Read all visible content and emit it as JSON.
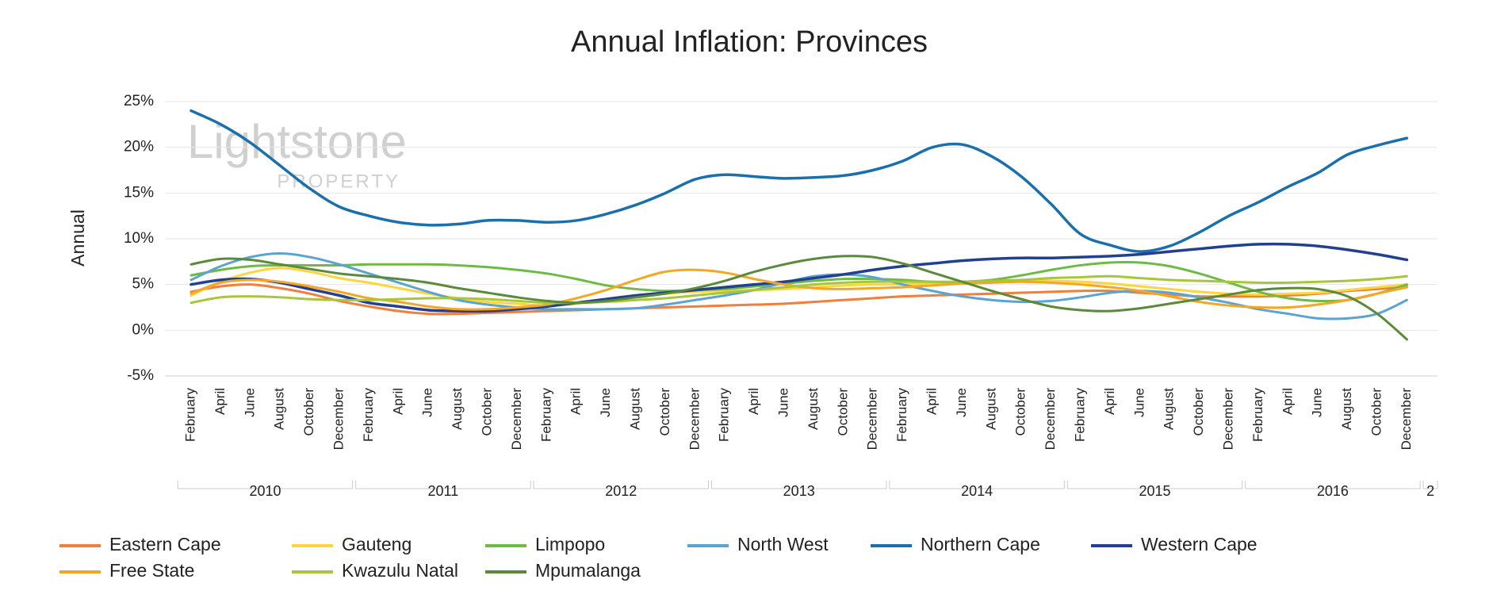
{
  "chart_data": {
    "type": "line",
    "title": "Annual Inflation: Provinces",
    "y_label": "Annual",
    "watermark": [
      "Lightstone",
      "PROPERTY"
    ],
    "categories": [
      "February",
      "April",
      "June",
      "August",
      "October",
      "December",
      "February",
      "April",
      "June",
      "August",
      "October",
      "December",
      "February",
      "April",
      "June",
      "August",
      "October",
      "December",
      "February",
      "April",
      "June",
      "August",
      "October",
      "December",
      "February",
      "April",
      "June",
      "August",
      "October",
      "December",
      "February",
      "April",
      "June",
      "August",
      "October",
      "December",
      "February",
      "April",
      "June",
      "August",
      "October",
      "December"
    ],
    "years": [
      "2010",
      "2011",
      "2012",
      "2013",
      "2014",
      "2015",
      "2016",
      "2"
    ],
    "ylim": [
      -5,
      25
    ],
    "yticks": [
      {
        "value": -5,
        "label": "-5%"
      },
      {
        "value": 0,
        "label": "0%"
      },
      {
        "value": 5,
        "label": "5%"
      },
      {
        "value": 10,
        "label": "10%"
      },
      {
        "value": 15,
        "label": "15%"
      },
      {
        "value": 20,
        "label": "20%"
      },
      {
        "value": 25,
        "label": "25%"
      }
    ],
    "grid": true,
    "legend": "bottom",
    "series": [
      {
        "name": "Eastern Cape",
        "color": "#f07f3c",
        "values": [
          4.2,
          4.8,
          5,
          4.6,
          4,
          3.2,
          2.6,
          2.1,
          1.8,
          1.8,
          1.9,
          2,
          2.1,
          2.2,
          2.3,
          2.4,
          2.5,
          2.6,
          2.7,
          2.8,
          2.9,
          3.1,
          3.3,
          3.5,
          3.7,
          3.8,
          3.9,
          4,
          4.1,
          4.2,
          4.3,
          4.3,
          4.1,
          3.9,
          3.7,
          3.7,
          3.7,
          3.8,
          4,
          4.3,
          4.5,
          4.8
        ]
      },
      {
        "name": "Gauteng",
        "color": "#fcd53f",
        "values": [
          3.8,
          5.3,
          6.3,
          6.8,
          6.4,
          5.7,
          5.2,
          4.6,
          4,
          3.5,
          3.1,
          2.9,
          2.7,
          2.9,
          3.3,
          3.7,
          4,
          4.2,
          4.3,
          4.4,
          4.5,
          4.7,
          4.9,
          5,
          5,
          5.1,
          5.2,
          5.3,
          5.4,
          5.4,
          5.3,
          5.1,
          4.8,
          4.5,
          4.2,
          4,
          3.9,
          4,
          4.1,
          4.4,
          4.7,
          5
        ]
      },
      {
        "name": "Limpopo",
        "color": "#6dbb45",
        "values": [
          6,
          6.6,
          7,
          7.1,
          7.1,
          7.1,
          7.2,
          7.2,
          7.2,
          7.1,
          6.9,
          6.6,
          6.2,
          5.6,
          4.9,
          4.5,
          4.3,
          4.4,
          4.5,
          4.8,
          5.1,
          5.4,
          5.6,
          5.6,
          5.5,
          5.3,
          5.3,
          5.5,
          6,
          6.6,
          7.1,
          7.4,
          7.4,
          7,
          6.2,
          5.2,
          4.2,
          3.5,
          3.2,
          3.3,
          4,
          5
        ]
      },
      {
        "name": "North West",
        "color": "#5ba3d0",
        "values": [
          5.5,
          7,
          8,
          8.4,
          8,
          7.2,
          6.2,
          5.2,
          4.2,
          3.3,
          2.8,
          2.5,
          2.3,
          2.3,
          2.3,
          2.4,
          2.8,
          3.3,
          3.8,
          4.4,
          5.2,
          5.9,
          6.1,
          5.8,
          5,
          4.3,
          3.7,
          3.3,
          3.1,
          3.2,
          3.6,
          4.1,
          4.3,
          4.1,
          3.6,
          3,
          2.3,
          1.8,
          1.3,
          1.3,
          1.8,
          3.3
        ]
      },
      {
        "name": "Northern Cape",
        "color": "#1a6fad",
        "values": [
          24,
          22.5,
          20.5,
          18,
          15.5,
          13.5,
          12.5,
          11.8,
          11.5,
          11.6,
          12,
          12,
          11.8,
          12,
          12.7,
          13.7,
          15,
          16.5,
          17,
          16.8,
          16.6,
          16.7,
          16.9,
          17.5,
          18.5,
          20,
          20.3,
          19,
          16.8,
          13.8,
          10.5,
          9.3,
          8.6,
          9.2,
          10.7,
          12.5,
          14,
          15.7,
          17.2,
          19.2,
          20.2,
          21
        ]
      },
      {
        "name": "Western Cape",
        "color": "#22408f",
        "values": [
          5,
          5.5,
          5.6,
          5.2,
          4.5,
          3.8,
          3,
          2.6,
          2.2,
          2.1,
          2.1,
          2.3,
          2.6,
          3,
          3.4,
          3.8,
          4.1,
          4.4,
          4.7,
          5,
          5.3,
          5.7,
          6.1,
          6.6,
          7,
          7.3,
          7.6,
          7.8,
          7.9,
          7.9,
          8,
          8.1,
          8.3,
          8.6,
          8.9,
          9.2,
          9.4,
          9.4,
          9.2,
          8.8,
          8.3,
          7.7
        ]
      },
      {
        "name": "Free State",
        "color": "#f5a623",
        "values": [
          4,
          5.2,
          5.5,
          5.3,
          4.8,
          4.2,
          3.5,
          3.1,
          2.6,
          2.3,
          2.3,
          2.5,
          2.8,
          3.5,
          4.4,
          5.5,
          6.4,
          6.6,
          6.3,
          5.6,
          5,
          4.6,
          4.5,
          4.6,
          4.7,
          4.9,
          5.1,
          5.2,
          5.3,
          5.2,
          5,
          4.7,
          4.3,
          3.7,
          3.1,
          2.7,
          2.5,
          2.5,
          2.8,
          3.3,
          4,
          4.7
        ]
      },
      {
        "name": "Kwazulu Natal",
        "color": "#a8c63a",
        "values": [
          3,
          3.6,
          3.7,
          3.6,
          3.4,
          3.3,
          3.3,
          3.4,
          3.5,
          3.5,
          3.4,
          3.2,
          3,
          3,
          3.1,
          3.3,
          3.5,
          3.8,
          4.1,
          4.4,
          4.7,
          5,
          5.2,
          5.3,
          5.3,
          5.3,
          5.3,
          5.4,
          5.5,
          5.7,
          5.8,
          5.9,
          5.7,
          5.5,
          5.4,
          5.3,
          5.2,
          5.2,
          5.3,
          5.4,
          5.6,
          5.9
        ]
      },
      {
        "name": "Mpumalanga",
        "color": "#5a8a3a",
        "values": [
          7.2,
          7.8,
          7.7,
          7.2,
          6.7,
          6.2,
          5.9,
          5.6,
          5.2,
          4.6,
          4.1,
          3.6,
          3.2,
          3,
          3.2,
          3.6,
          4,
          4.6,
          5.4,
          6.4,
          7.2,
          7.8,
          8.1,
          8,
          7.3,
          6.3,
          5.3,
          4.3,
          3.4,
          2.6,
          2.2,
          2.1,
          2.4,
          2.9,
          3.4,
          3.9,
          4.4,
          4.6,
          4.5,
          3.7,
          1.8,
          -1
        ]
      }
    ]
  }
}
